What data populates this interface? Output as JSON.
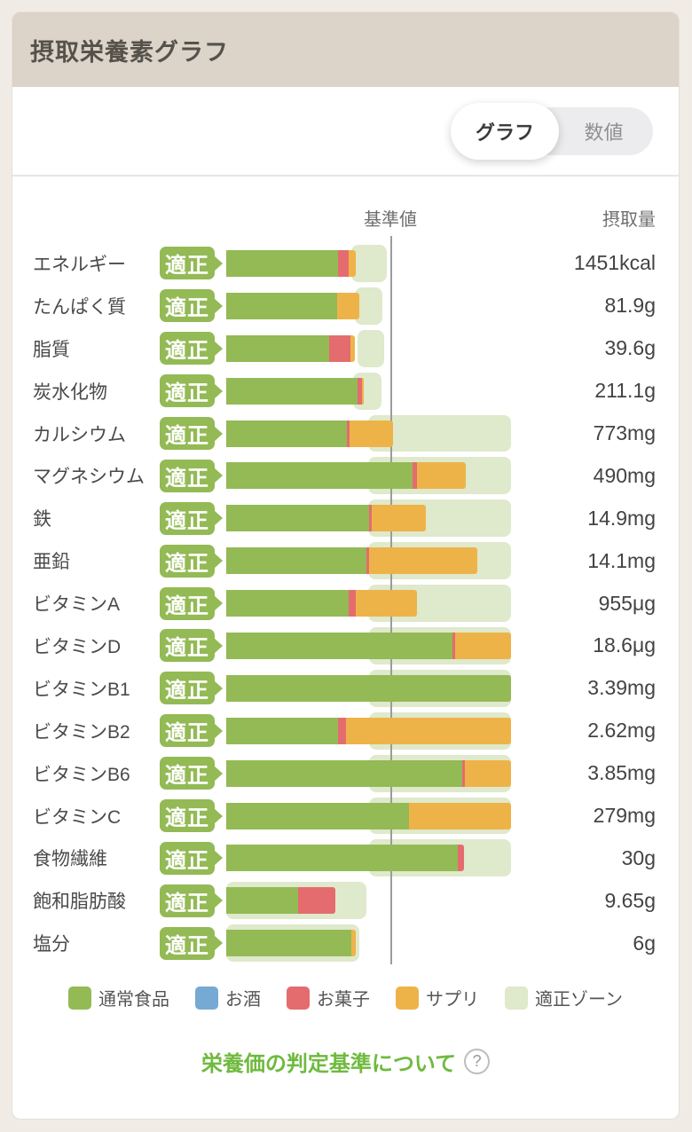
{
  "page_title": "摂取栄養素グラフ",
  "toggle": {
    "options": [
      {
        "label": "グラフ",
        "selected": true
      },
      {
        "label": "数値",
        "selected": false
      }
    ]
  },
  "chart_data": {
    "type": "bar",
    "orientation": "horizontal-stacked",
    "reference_label": "基準値",
    "intake_label": "摂取量",
    "reference_line_pct": 50.5,
    "colors": {
      "food": "#93ba55",
      "alcohol": "#76a9d4",
      "sweets": "#e46c6f",
      "supplement": "#eeb348",
      "zone": "#dfe9cb",
      "badge": "#93ba55"
    },
    "legend": [
      {
        "key": "food",
        "label": "通常食品"
      },
      {
        "key": "alcohol",
        "label": "お酒"
      },
      {
        "key": "sweets",
        "label": "お菓子"
      },
      {
        "key": "supplement",
        "label": "サプリ"
      },
      {
        "key": "zone",
        "label": "適正ゾーン"
      }
    ],
    "rows": [
      {
        "nutrient": "エネルギー",
        "status": "適正",
        "intake": "1451kcal",
        "segments": [
          {
            "type": "food",
            "pct": 39.3
          },
          {
            "type": "sweets",
            "pct": 3.7
          },
          {
            "type": "supplement",
            "pct": 2.5
          }
        ],
        "zone": [
          43.9,
          56.4
        ]
      },
      {
        "nutrient": "たんぱく質",
        "status": "適正",
        "intake": "81.9g",
        "segments": [
          {
            "type": "food",
            "pct": 38.9
          },
          {
            "type": "supplement",
            "pct": 7.8
          }
        ],
        "zone": [
          45.2,
          54.8
        ]
      },
      {
        "nutrient": "脂質",
        "status": "適正",
        "intake": "39.6g",
        "segments": [
          {
            "type": "food",
            "pct": 36.1
          },
          {
            "type": "sweets",
            "pct": 7.5
          },
          {
            "type": "supplement",
            "pct": 1.6
          }
        ],
        "zone": [
          46.1,
          55.5
        ]
      },
      {
        "nutrient": "炭水化物",
        "status": "適正",
        "intake": "211.1g",
        "segments": [
          {
            "type": "food",
            "pct": 46.1
          },
          {
            "type": "sweets",
            "pct": 1.6
          },
          {
            "type": "supplement",
            "pct": 0.6
          }
        ],
        "zone": [
          44.5,
          54.5
        ]
      },
      {
        "nutrient": "カルシウム",
        "status": "適正",
        "intake": "773mg",
        "segments": [
          {
            "type": "food",
            "pct": 42.4
          },
          {
            "type": "sweets",
            "pct": 0.9
          },
          {
            "type": "supplement",
            "pct": 15.3
          }
        ],
        "zone": [
          49.8,
          100
        ]
      },
      {
        "nutrient": "マグネシウム",
        "status": "適正",
        "intake": "490mg",
        "segments": [
          {
            "type": "food",
            "pct": 65.4
          },
          {
            "type": "sweets",
            "pct": 1.6
          },
          {
            "type": "supplement",
            "pct": 17.1
          }
        ],
        "zone": [
          49.8,
          100
        ]
      },
      {
        "nutrient": "鉄",
        "status": "適正",
        "intake": "14.9mg",
        "segments": [
          {
            "type": "food",
            "pct": 50.2
          },
          {
            "type": "sweets",
            "pct": 0.9
          },
          {
            "type": "supplement",
            "pct": 19.0
          }
        ],
        "zone": [
          49.8,
          100
        ]
      },
      {
        "nutrient": "亜鉛",
        "status": "適正",
        "intake": "14.1mg",
        "segments": [
          {
            "type": "food",
            "pct": 49.2
          },
          {
            "type": "sweets",
            "pct": 1.0
          },
          {
            "type": "supplement",
            "pct": 38.0
          }
        ],
        "zone": [
          49.8,
          100
        ]
      },
      {
        "nutrient": "ビタミンA",
        "status": "適正",
        "intake": "955μg",
        "segments": [
          {
            "type": "food",
            "pct": 43.0
          },
          {
            "type": "sweets",
            "pct": 2.5
          },
          {
            "type": "supplement",
            "pct": 21.5
          }
        ],
        "zone": [
          49.8,
          100
        ]
      },
      {
        "nutrient": "ビタミンD",
        "status": "適正",
        "intake": "18.6μg",
        "segments": [
          {
            "type": "food",
            "pct": 79.4
          },
          {
            "type": "sweets",
            "pct": 1.0
          },
          {
            "type": "supplement",
            "pct": 19.6
          }
        ],
        "zone": [
          50.3,
          100
        ]
      },
      {
        "nutrient": "ビタミンB1",
        "status": "適正",
        "intake": "3.39mg",
        "segments": [
          {
            "type": "food",
            "pct": 100
          }
        ],
        "zone": [
          50.3,
          100
        ]
      },
      {
        "nutrient": "ビタミンB2",
        "status": "適正",
        "intake": "2.62mg",
        "segments": [
          {
            "type": "food",
            "pct": 39.3
          },
          {
            "type": "sweets",
            "pct": 2.8
          },
          {
            "type": "supplement",
            "pct": 57.9
          }
        ],
        "zone": [
          50.3,
          100
        ]
      },
      {
        "nutrient": "ビタミンB6",
        "status": "適正",
        "intake": "3.85mg",
        "segments": [
          {
            "type": "food",
            "pct": 82.9
          },
          {
            "type": "sweets",
            "pct": 0.9
          },
          {
            "type": "supplement",
            "pct": 16.2
          }
        ],
        "zone": [
          50.3,
          100
        ]
      },
      {
        "nutrient": "ビタミンC",
        "status": "適正",
        "intake": "279mg",
        "segments": [
          {
            "type": "food",
            "pct": 64.2
          },
          {
            "type": "supplement",
            "pct": 35.8
          }
        ],
        "zone": [
          50.3,
          100
        ]
      },
      {
        "nutrient": "食物繊維",
        "status": "適正",
        "intake": "30g",
        "segments": [
          {
            "type": "food",
            "pct": 81.3
          },
          {
            "type": "sweets",
            "pct": 2.2
          }
        ],
        "zone": [
          50.3,
          100
        ]
      },
      {
        "nutrient": "飽和脂肪酸",
        "status": "適正",
        "intake": "9.65g",
        "segments": [
          {
            "type": "food",
            "pct": 25.2
          },
          {
            "type": "sweets",
            "pct": 13.1
          }
        ],
        "zone": [
          0,
          49.2
        ]
      },
      {
        "nutrient": "塩分",
        "status": "適正",
        "intake": "6g",
        "segments": [
          {
            "type": "food",
            "pct": 43.9
          },
          {
            "type": "supplement",
            "pct": 1.6
          }
        ],
        "zone": [
          0,
          46.7
        ]
      }
    ]
  },
  "footer": {
    "link_label": "栄養価の判定基準について",
    "help_icon": "?"
  },
  "theme": {
    "page_bg": "#f0ece5",
    "header_bg": "#dcd3c9",
    "link_green": "#6fba3e"
  }
}
